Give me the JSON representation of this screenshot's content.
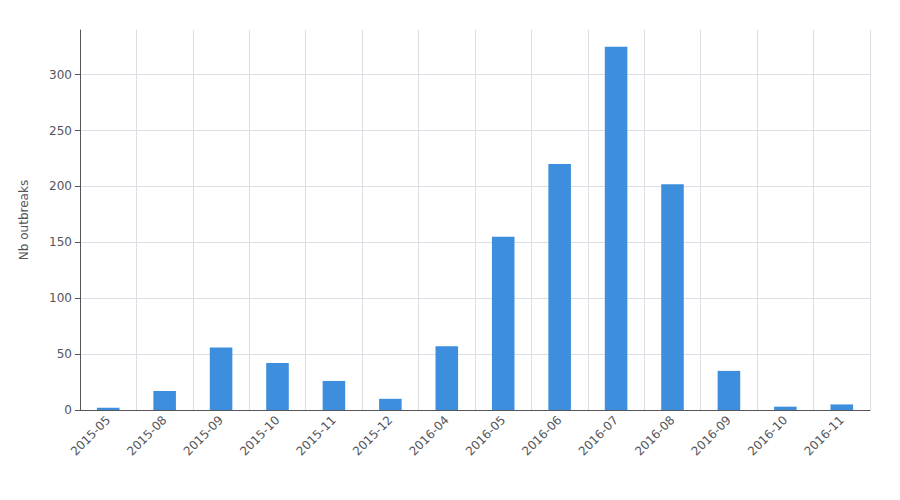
{
  "chart_data": {
    "type": "bar",
    "categories": [
      "2015-05",
      "2015-08",
      "2015-09",
      "2015-10",
      "2015-11",
      "2015-12",
      "2016-04",
      "2016-05",
      "2016-06",
      "2016-07",
      "2016-08",
      "2016-09",
      "2016-10",
      "2016-11"
    ],
    "values": [
      2,
      17,
      56,
      42,
      26,
      10,
      57,
      155,
      220,
      325,
      202,
      35,
      3,
      5
    ],
    "color": "#3d8fde",
    "ylabel": "Nb outbreaks",
    "ylim": [
      0,
      340
    ],
    "yticks": [
      0,
      50,
      100,
      150,
      200,
      250,
      300
    ],
    "grid": true
  }
}
